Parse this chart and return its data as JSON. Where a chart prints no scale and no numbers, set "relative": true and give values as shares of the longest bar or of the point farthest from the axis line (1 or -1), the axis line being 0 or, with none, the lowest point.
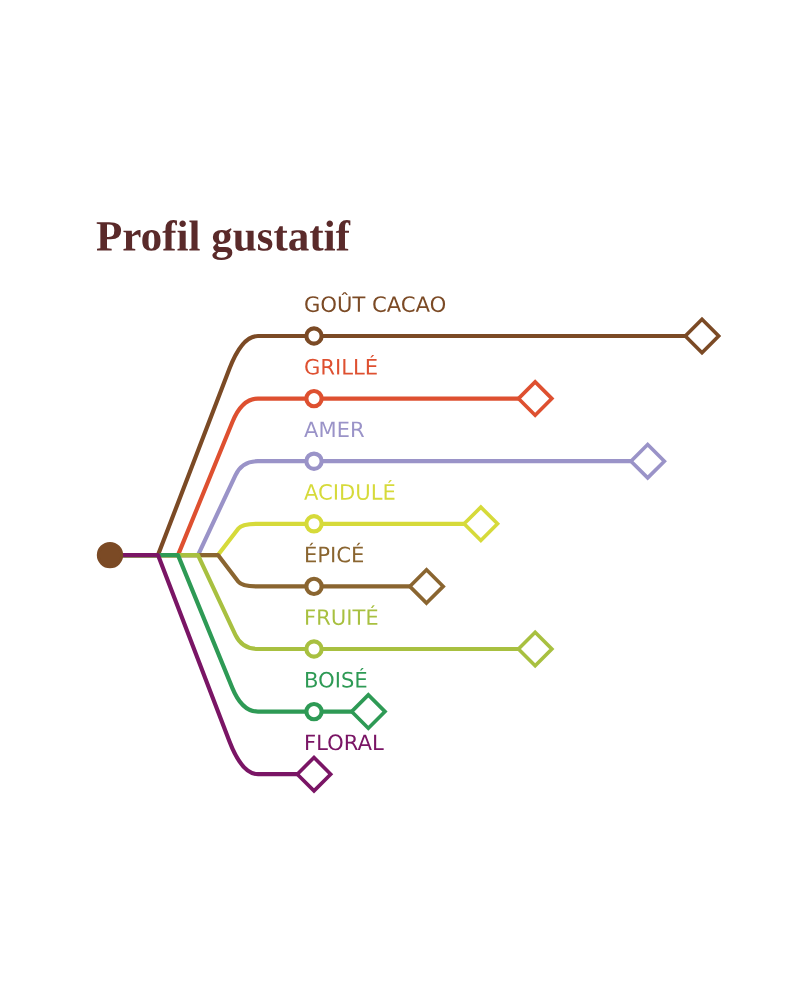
{
  "chart_data": {
    "type": "lollipop",
    "title": "Profil gustatif",
    "orientation": "horizontal",
    "relative": true,
    "marker": "diamond",
    "categories": [
      "GOÛT CACAO",
      "GRILLÉ",
      "AMER",
      "ACIDULÉ",
      "ÉPICÉ",
      "FRUITÉ",
      "BOISÉ",
      "FLORAL"
    ],
    "values": [
      1,
      0.57,
      0.86,
      0.43,
      0.29,
      0.57,
      0.14,
      0
    ],
    "colors": [
      "#7b4a25",
      "#de5030",
      "#9a93c8",
      "#d6da3a",
      "#8a6530",
      "#a8c040",
      "#2e9a55",
      "#7a1565"
    ]
  }
}
